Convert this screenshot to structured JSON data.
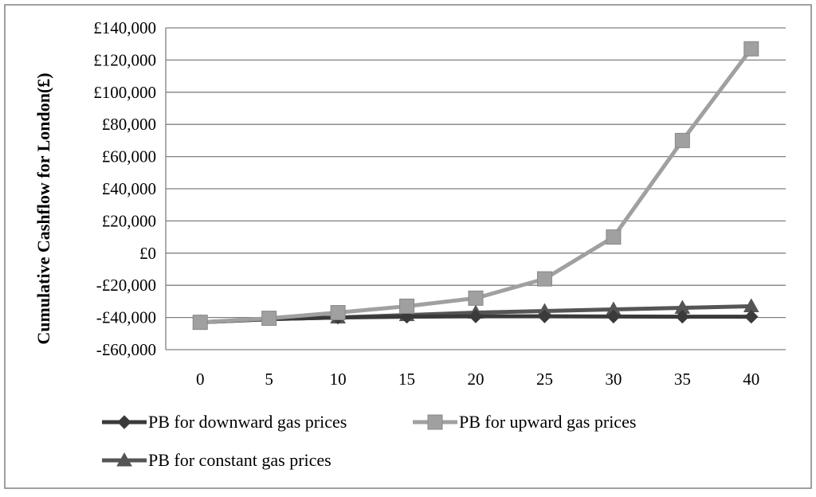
{
  "chart_data": {
    "type": "line",
    "title": "",
    "xlabel": "",
    "ylabel": "Cumulative Cashflow for London(£)",
    "x": [
      0,
      5,
      10,
      15,
      20,
      25,
      30,
      35,
      40
    ],
    "x_tick_labels": [
      "0",
      "5",
      "10",
      "15",
      "20",
      "25",
      "30",
      "35",
      "40"
    ],
    "ylim": [
      -60000,
      140000
    ],
    "y_ticks": [
      -60000,
      -40000,
      -20000,
      0,
      20000,
      40000,
      60000,
      80000,
      100000,
      120000,
      140000
    ],
    "y_tick_labels": [
      "-£60,000",
      "-£40,000",
      "-£20,000",
      "£0",
      "£20,000",
      "£40,000",
      "£60,000",
      "£80,000",
      "£100,000",
      "£120,000",
      "£140,000"
    ],
    "grid": true,
    "legend_position": "bottom",
    "series": [
      {
        "name": "PB for downward gas prices",
        "marker": "diamond",
        "color": "#3a3a3a",
        "values": [
          -43000,
          -41000,
          -40000,
          -39500,
          -39300,
          -39300,
          -39400,
          -39500,
          -39500
        ]
      },
      {
        "name": "PB for upward gas prices",
        "marker": "square",
        "color": "#a0a0a0",
        "values": [
          -43000,
          -40500,
          -37000,
          -33000,
          -28000,
          -16000,
          10000,
          70000,
          127000
        ]
      },
      {
        "name": "PB for constant gas prices",
        "marker": "triangle",
        "color": "#555555",
        "values": [
          -43000,
          -41000,
          -40000,
          -38500,
          -37000,
          -36000,
          -35000,
          -34000,
          -33000
        ]
      }
    ]
  }
}
